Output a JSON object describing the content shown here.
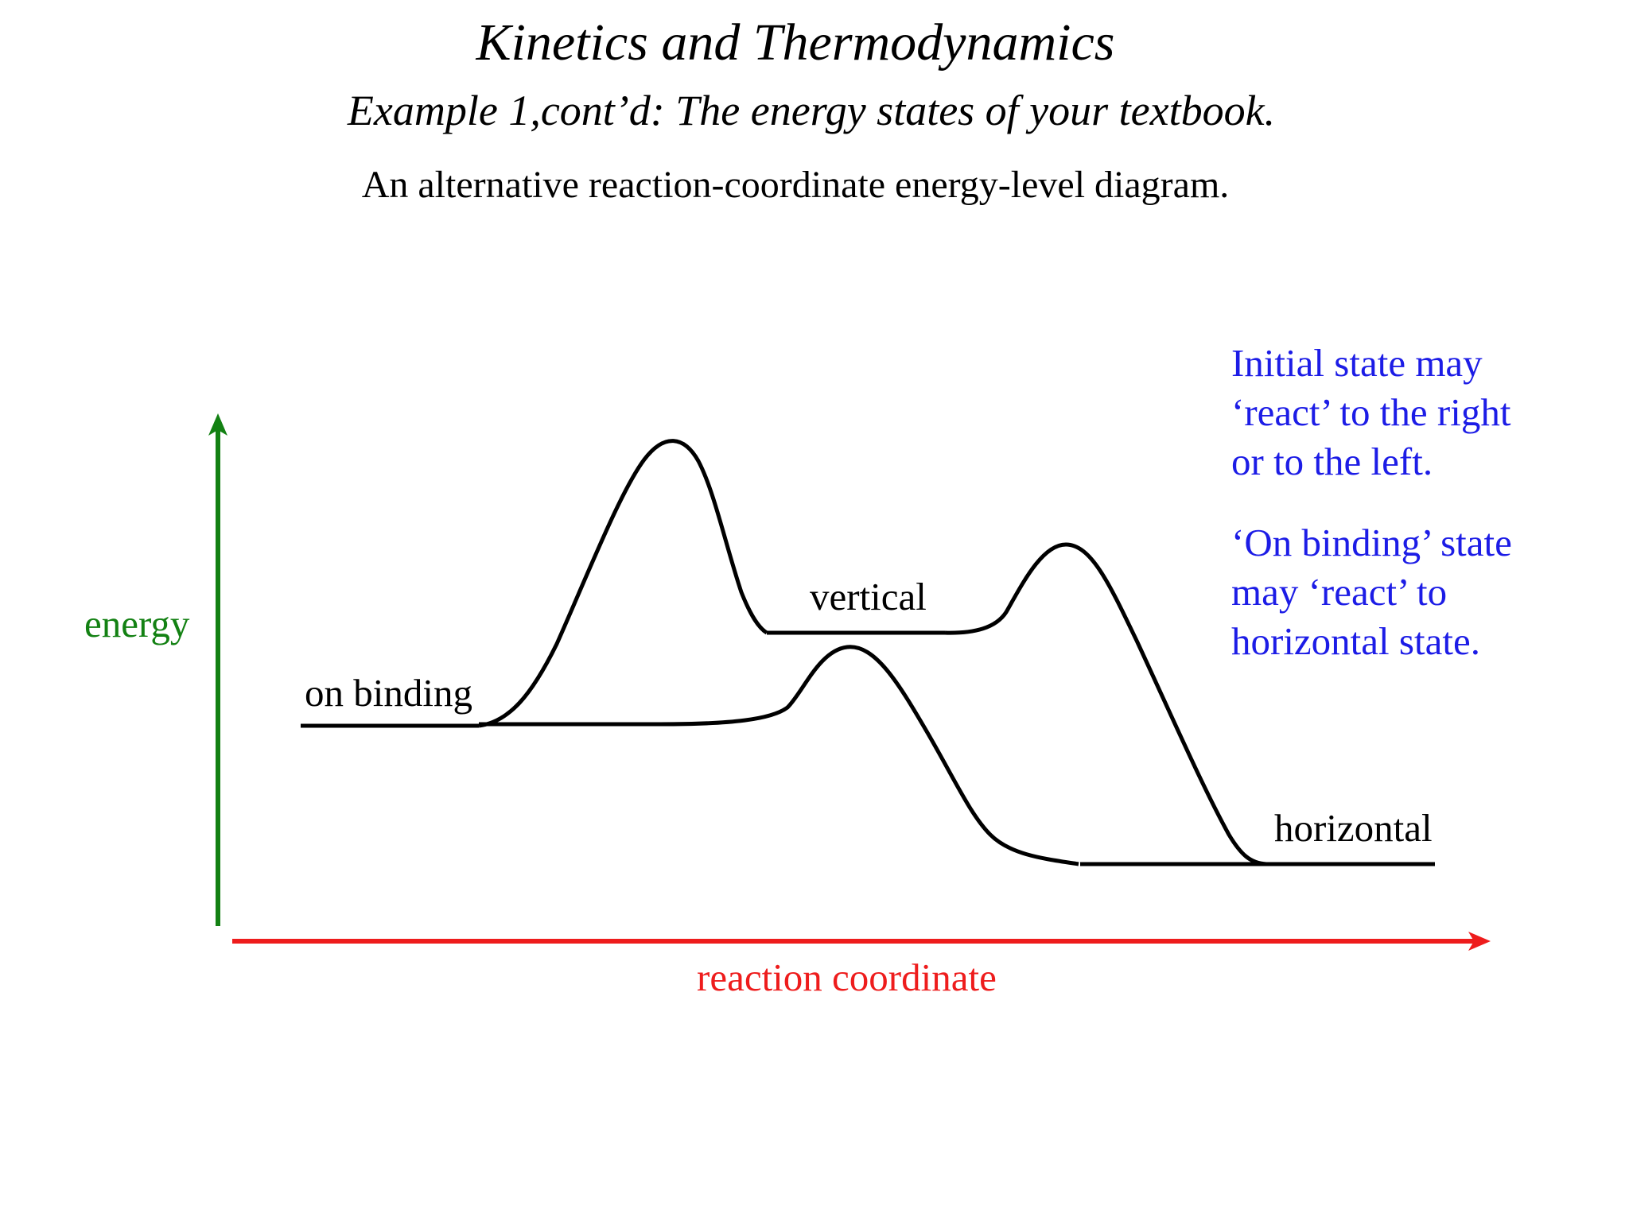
{
  "title": "Kinetics and Thermodynamics",
  "subtitle": "Example 1,cont’d:  The energy states of your textbook.",
  "caption": "An alternative reaction-coordinate energy-level diagram.",
  "axes": {
    "y_label": "energy",
    "x_label": "reaction coordinate",
    "y_color": "#138113",
    "x_color": "#ee1c1c"
  },
  "states": {
    "on_binding": "on binding",
    "vertical": "vertical",
    "horizontal": "horizontal"
  },
  "notes": {
    "color": "#1c1ce6",
    "note1": [
      "Initial state may",
      "‘react’ to the right",
      "or to the left."
    ],
    "note2": [
      "‘On binding’ state",
      "may ‘react’ to",
      "horizontal state."
    ]
  }
}
